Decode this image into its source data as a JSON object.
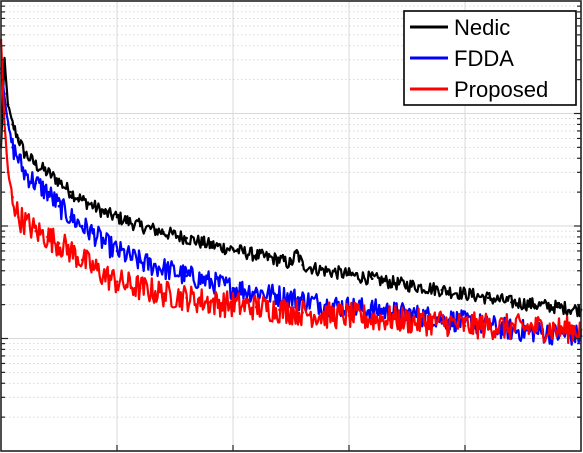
{
  "chart_data": {
    "type": "line",
    "title": "",
    "xlabel": "",
    "ylabel": "",
    "x_range": [
      0,
      500
    ],
    "y_scale": "log",
    "y_range": [
      0.0001,
      1
    ],
    "grid": true,
    "legend_position": "top-right",
    "series": [
      {
        "name": "Nedic",
        "color": "#000000",
        "x": [
          0,
          3,
          6,
          10,
          15,
          20,
          30,
          40,
          50,
          60,
          70,
          80,
          90,
          100,
          120,
          140,
          160,
          180,
          200,
          220,
          240,
          250,
          255,
          260,
          270,
          280,
          300,
          320,
          340,
          360,
          380,
          400,
          420,
          440,
          460,
          480,
          500
        ],
        "y": [
          0.05,
          0.3,
          0.12,
          0.08,
          0.06,
          0.045,
          0.035,
          0.03,
          0.025,
          0.02,
          0.017,
          0.015,
          0.013,
          0.012,
          0.01,
          0.0088,
          0.0078,
          0.0068,
          0.0062,
          0.0055,
          0.005,
          0.0046,
          0.0058,
          0.0045,
          0.0042,
          0.004,
          0.0037,
          0.0034,
          0.0031,
          0.0029,
          0.0027,
          0.0025,
          0.0023,
          0.0021,
          0.002,
          0.0019,
          0.0018
        ]
      },
      {
        "name": "FDDA",
        "color": "#0000ff",
        "x": [
          0,
          3,
          6,
          10,
          15,
          20,
          30,
          40,
          50,
          60,
          70,
          80,
          90,
          100,
          120,
          140,
          160,
          180,
          200,
          220,
          240,
          260,
          280,
          300,
          320,
          340,
          360,
          380,
          400,
          420,
          440,
          460,
          480,
          500
        ],
        "y": [
          0.25,
          0.15,
          0.08,
          0.05,
          0.04,
          0.03,
          0.024,
          0.02,
          0.015,
          0.012,
          0.01,
          0.0085,
          0.007,
          0.006,
          0.0048,
          0.0042,
          0.0036,
          0.0032,
          0.0028,
          0.0026,
          0.0024,
          0.0022,
          0.002,
          0.0019,
          0.0018,
          0.0017,
          0.0016,
          0.0015,
          0.0014,
          0.0013,
          0.0012,
          0.00115,
          0.0011,
          0.00105
        ]
      },
      {
        "name": "Proposed",
        "color": "#ff0000",
        "x": [
          0,
          3,
          6,
          10,
          15,
          20,
          30,
          40,
          50,
          60,
          70,
          80,
          90,
          100,
          120,
          140,
          160,
          180,
          200,
          220,
          240,
          260,
          280,
          300,
          320,
          340,
          360,
          380,
          400,
          420,
          440,
          460,
          480,
          500
        ],
        "y": [
          0.45,
          0.08,
          0.03,
          0.018,
          0.012,
          0.011,
          0.009,
          0.008,
          0.007,
          0.006,
          0.005,
          0.0042,
          0.0036,
          0.0032,
          0.0028,
          0.0025,
          0.0023,
          0.0021,
          0.002,
          0.0019,
          0.0018,
          0.0017,
          0.0016,
          0.0016,
          0.0015,
          0.0015,
          0.0014,
          0.0014,
          0.0013,
          0.0013,
          0.00125,
          0.00125,
          0.0012,
          0.0012
        ]
      }
    ]
  }
}
